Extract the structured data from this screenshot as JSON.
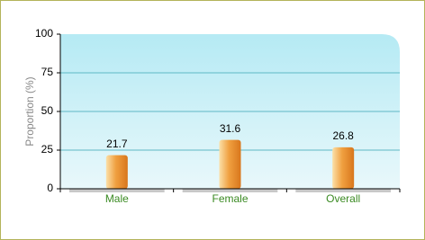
{
  "chart_data": {
    "type": "bar",
    "categories": [
      "Male",
      "Female",
      "Overall"
    ],
    "values": [
      21.7,
      31.6,
      26.8
    ],
    "color": "#f0a040",
    "y_label": "Proportion (%)",
    "ylim": [
      0,
      100
    ],
    "yticks": [
      0,
      25,
      50,
      75,
      100
    ],
    "grid": true
  }
}
